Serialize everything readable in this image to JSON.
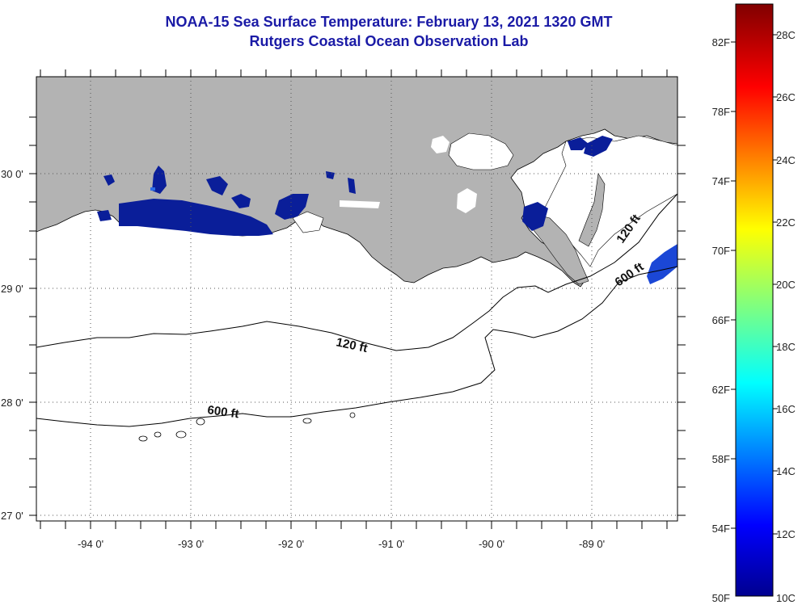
{
  "title": {
    "line1": "NOAA-15 Sea Surface Temperature:  February 13, 2021 1320 GMT",
    "line2": "Rutgers Coastal Ocean Observation Lab"
  },
  "map": {
    "lat_labels": [
      "30 0'",
      "29 0'",
      "28 0'",
      "27 0'"
    ],
    "lon_labels": [
      "-94 0'",
      "-93 0'",
      "-92 0'",
      "-91 0'",
      "-90 0'",
      "-89 0'"
    ],
    "contours": [
      {
        "label": "120 ft"
      },
      {
        "label": "120 ft"
      },
      {
        "label": "600 ft"
      },
      {
        "label": "600 ft"
      }
    ],
    "colors": {
      "land": "#b3b3b3",
      "ocean": "#ffffff",
      "cold_sst": "#0a1e99",
      "grid": "#555555"
    }
  },
  "colorbar": {
    "fahrenheit": [
      "82F",
      "78F",
      "74F",
      "70F",
      "66F",
      "62F",
      "58F",
      "54F",
      "50F"
    ],
    "celsius": [
      "28C",
      "26C",
      "24C",
      "22C",
      "20C",
      "18C",
      "16C",
      "14C",
      "12C",
      "10C"
    ]
  }
}
